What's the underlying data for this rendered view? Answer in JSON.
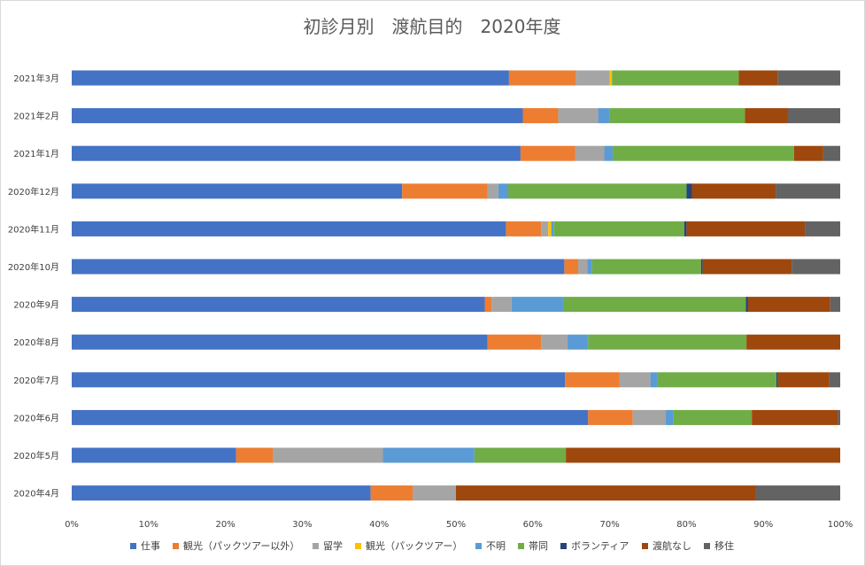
{
  "chart_data": {
    "type": "bar",
    "orientation": "horizontal",
    "stacked": "percent",
    "title": "初診月別　渡航目的　2020年度",
    "xlim": [
      0,
      100
    ],
    "x_ticks": [
      "0%",
      "10%",
      "20%",
      "30%",
      "40%",
      "50%",
      "60%",
      "70%",
      "80%",
      "90%",
      "100%"
    ],
    "grid": false,
    "legend_position": "bottom",
    "categories": [
      "2021年3月",
      "2021年2月",
      "2021年1月",
      "2020年12月",
      "2020年11月",
      "2020年10月",
      "2020年9月",
      "2020年8月",
      "2020年7月",
      "2020年6月",
      "2020年5月",
      "2020年4月"
    ],
    "series": [
      {
        "name": "仕事",
        "color": "#4472C4",
        "values": [
          56.9,
          58.7,
          58.4,
          43.0,
          56.5,
          64.1,
          53.8,
          54.1,
          64.2,
          67.2,
          21.4,
          38.9
        ]
      },
      {
        "name": "観光（パックツアー以外）",
        "color": "#ED7D31",
        "values": [
          8.7,
          4.6,
          7.1,
          11.1,
          4.6,
          1.8,
          0.9,
          7.0,
          7.1,
          5.8,
          4.8,
          5.5
        ]
      },
      {
        "name": "留学",
        "color": "#A5A5A5",
        "values": [
          4.4,
          5.2,
          3.8,
          1.4,
          0.9,
          1.2,
          2.6,
          3.4,
          4.0,
          4.3,
          14.3,
          5.6
        ]
      },
      {
        "name": "観光（パックツアー）",
        "color": "#FFC000",
        "values": [
          0.3,
          0.0,
          0.0,
          0.0,
          0.4,
          0.0,
          0.0,
          0.0,
          0.0,
          0.0,
          0.0,
          0.0
        ]
      },
      {
        "name": "不明",
        "color": "#5B9BD5",
        "values": [
          0.0,
          1.5,
          1.1,
          1.3,
          0.3,
          0.6,
          6.7,
          2.7,
          0.9,
          1.0,
          11.9,
          0.0
        ]
      },
      {
        "name": "帯同",
        "color": "#70AD47",
        "values": [
          16.5,
          17.6,
          23.6,
          23.2,
          17.0,
          14.2,
          23.8,
          20.6,
          15.5,
          10.2,
          11.9,
          0.0
        ]
      },
      {
        "name": "ボランティア",
        "color": "#264478",
        "values": [
          0.0,
          0.0,
          0.0,
          0.7,
          0.3,
          0.2,
          0.3,
          0.0,
          0.2,
          0.0,
          0.0,
          0.0
        ]
      },
      {
        "name": "渡航なし",
        "color": "#9E480E",
        "values": [
          5.1,
          5.6,
          3.8,
          10.9,
          15.4,
          11.6,
          10.7,
          12.2,
          6.7,
          11.2,
          35.7,
          39.0
        ]
      },
      {
        "name": "移住",
        "color": "#636363",
        "values": [
          8.1,
          6.8,
          2.2,
          8.4,
          4.6,
          6.3,
          1.3,
          0.0,
          1.4,
          0.3,
          0.0,
          11.0
        ]
      }
    ]
  }
}
